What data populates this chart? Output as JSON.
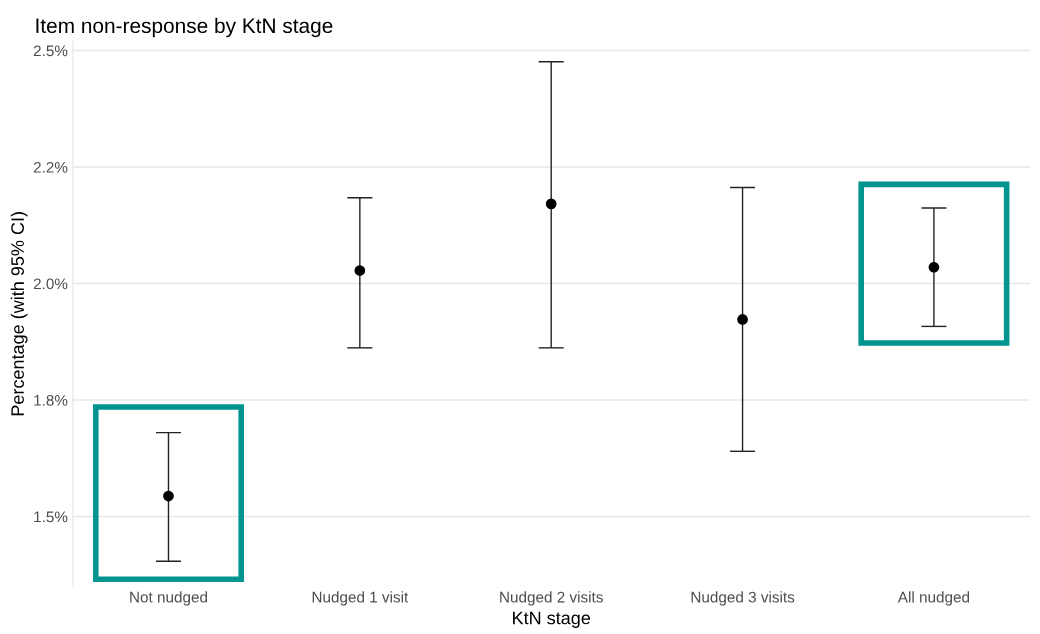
{
  "chart_data": {
    "type": "scatter",
    "title": "Item non-response by KtN stage",
    "xlabel": "KtN stage",
    "ylabel": "Percentage (with 95% CI)",
    "categories": [
      "Not nudged",
      "Nudged 1 visit",
      "Nudged 2 visits",
      "Nudged 3 visits",
      "All nudged"
    ],
    "values": [
      1.544,
      2.028,
      2.171,
      1.923,
      2.035
    ],
    "errors": [
      [
        1.404,
        1.68
      ],
      [
        1.862,
        2.184
      ],
      [
        1.862,
        2.476
      ],
      [
        1.64,
        2.206
      ],
      [
        1.908,
        2.162
      ]
    ],
    "color": "#000000",
    "marker": "circle",
    "yticks": [
      {
        "value": 1.5,
        "label": "1.5%"
      },
      {
        "value": 1.75,
        "label": "1.8%"
      },
      {
        "value": 2.0,
        "label": "2.0%"
      },
      {
        "value": 2.25,
        "label": "2.2%"
      },
      {
        "value": 2.5,
        "label": "2.5%"
      }
    ],
    "ylim": [
      1.35,
      2.52
    ],
    "grid": "y"
  }
}
